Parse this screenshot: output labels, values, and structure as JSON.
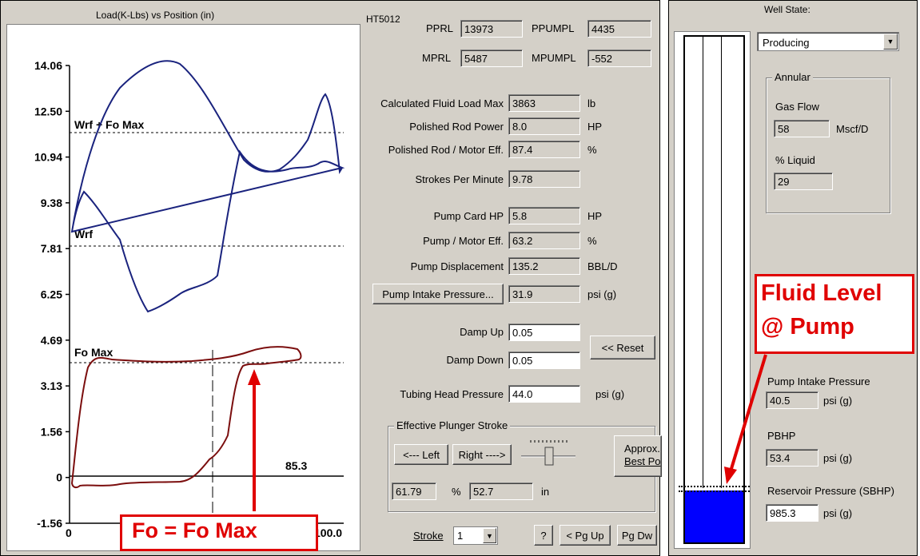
{
  "chart_panel": {
    "title": "Load(K-Lbs) vs Position (in)",
    "ylim": [
      -1.56,
      14.06
    ],
    "xlim": [
      0,
      100
    ],
    "y_ticks": [
      "14.06",
      "12.50",
      "10.94",
      "9.38",
      "7.81",
      "6.25",
      "4.69",
      "3.13",
      "1.56",
      "0",
      "-1.56"
    ],
    "x_tick_left": "0",
    "x_tick_right": "100.0",
    "cursor_label": "85.3",
    "ref_labels": {
      "wrf_fo_max": "Wrf + Fo Max",
      "wrf": "Wrf",
      "fo_max": "Fo Max"
    }
  },
  "well_id": "HT5012",
  "loads": {
    "pprl_label": "PPRL",
    "pprl_value": "13973",
    "ppumpl_label": "PPUMPL",
    "ppumpl_value": "4435",
    "mprl_label": "MPRL",
    "mprl_value": "5487",
    "mpumpl_label": "MPUMPL",
    "mpumpl_value": "-552"
  },
  "stats": [
    {
      "label": "Calculated Fluid Load Max",
      "value": "3863",
      "unit": "lb"
    },
    {
      "label": "Polished Rod Power",
      "value": "8.0",
      "unit": "HP"
    },
    {
      "label": "Polished Rod / Motor Eff.",
      "value": "87.4",
      "unit": "%"
    },
    {
      "label": "Strokes Per Minute",
      "value": "9.78",
      "unit": ""
    },
    {
      "label": "Pump Card HP",
      "value": "5.8",
      "unit": "HP"
    },
    {
      "label": "Pump / Motor Eff.",
      "value": "63.2",
      "unit": "%"
    },
    {
      "label": "Pump Displacement",
      "value": "135.2",
      "unit": "BBL/D"
    }
  ],
  "pip": {
    "button": "Pump Intake Pressure...",
    "value": "31.9",
    "unit": "psi (g)"
  },
  "damp": {
    "up_label": "Damp Up",
    "up_value": "0.05",
    "down_label": "Damp Down",
    "down_value": "0.05",
    "reset": "<< Reset"
  },
  "thp": {
    "label": "Tubing Head Pressure",
    "value": "44.0",
    "unit": "psi (g)"
  },
  "plunger": {
    "title": "Effective Plunger Stroke",
    "left_btn": "<--- Left",
    "right_btn": "Right ---->",
    "approx_line1": "Approx.",
    "approx_line2": "Best Po",
    "pct_value": "61.79",
    "pct_unit": "%",
    "in_value": "52.7",
    "in_unit": "in",
    "slider_level": 0.5
  },
  "bottom": {
    "stroke_label": "Stroke",
    "stroke_value": "1",
    "help": "?",
    "pgup": "< Pg Up",
    "pgdn": "Pg Dw"
  },
  "well_state": {
    "label": "Well State:",
    "value": "Producing",
    "annular_title": "Annular",
    "gas_flow_label": "Gas Flow",
    "gas_flow_value": "58",
    "gas_flow_unit": "Mscf/D",
    "liquid_label": "% Liquid",
    "liquid_value": "29",
    "pip_label": "Pump Intake Pressure",
    "pip_value": "40.5",
    "pip_unit": "psi (g)",
    "pbhp_label": "PBHP",
    "pbhp_value": "53.4",
    "pbhp_unit": "psi (g)",
    "sbhp_label": "Reservoir Pressure (SBHP)",
    "sbhp_value": "985.3",
    "sbhp_unit": "psi (g)"
  },
  "callouts": {
    "fo_max": "Fo = Fo Max",
    "fluid_line1": "Fluid Level",
    "fluid_line2": "@ Pump"
  },
  "colors": {
    "surface_card": "#1a237e",
    "pump_card": "#7b0e0e",
    "callout": "#e00000",
    "fluid": "#0000ff"
  }
}
